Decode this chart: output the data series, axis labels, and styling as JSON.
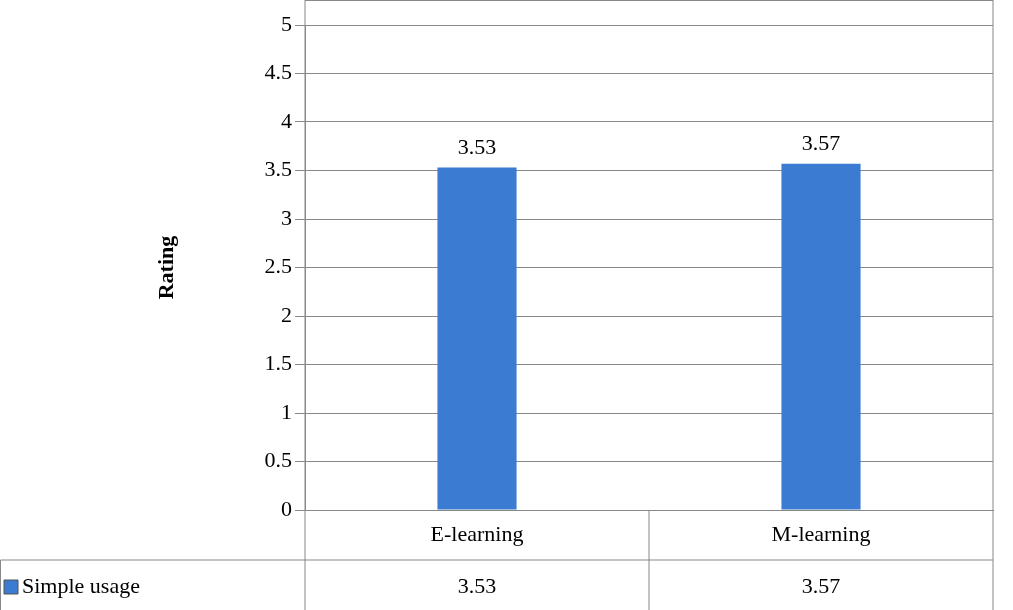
{
  "chart_data": {
    "type": "bar",
    "ylabel": "Rating",
    "categories": [
      "E-learning",
      "M-learning"
    ],
    "series": [
      {
        "name": "Simple usage",
        "color": "#3b7bd2",
        "values": [
          3.53,
          3.57
        ]
      }
    ],
    "annotations": [
      {
        "text": "3.53",
        "x": "E-learning",
        "y": 3.53
      },
      {
        "text": "3.57",
        "x": "M-learning",
        "y": 3.57
      }
    ],
    "ylim": [
      0,
      5
    ],
    "yticks": [
      0,
      0.5,
      1,
      1.5,
      2,
      2.5,
      3,
      3.5,
      4,
      4.5,
      5
    ],
    "grid": "y",
    "legend": "bottom",
    "data_labels": true
  }
}
